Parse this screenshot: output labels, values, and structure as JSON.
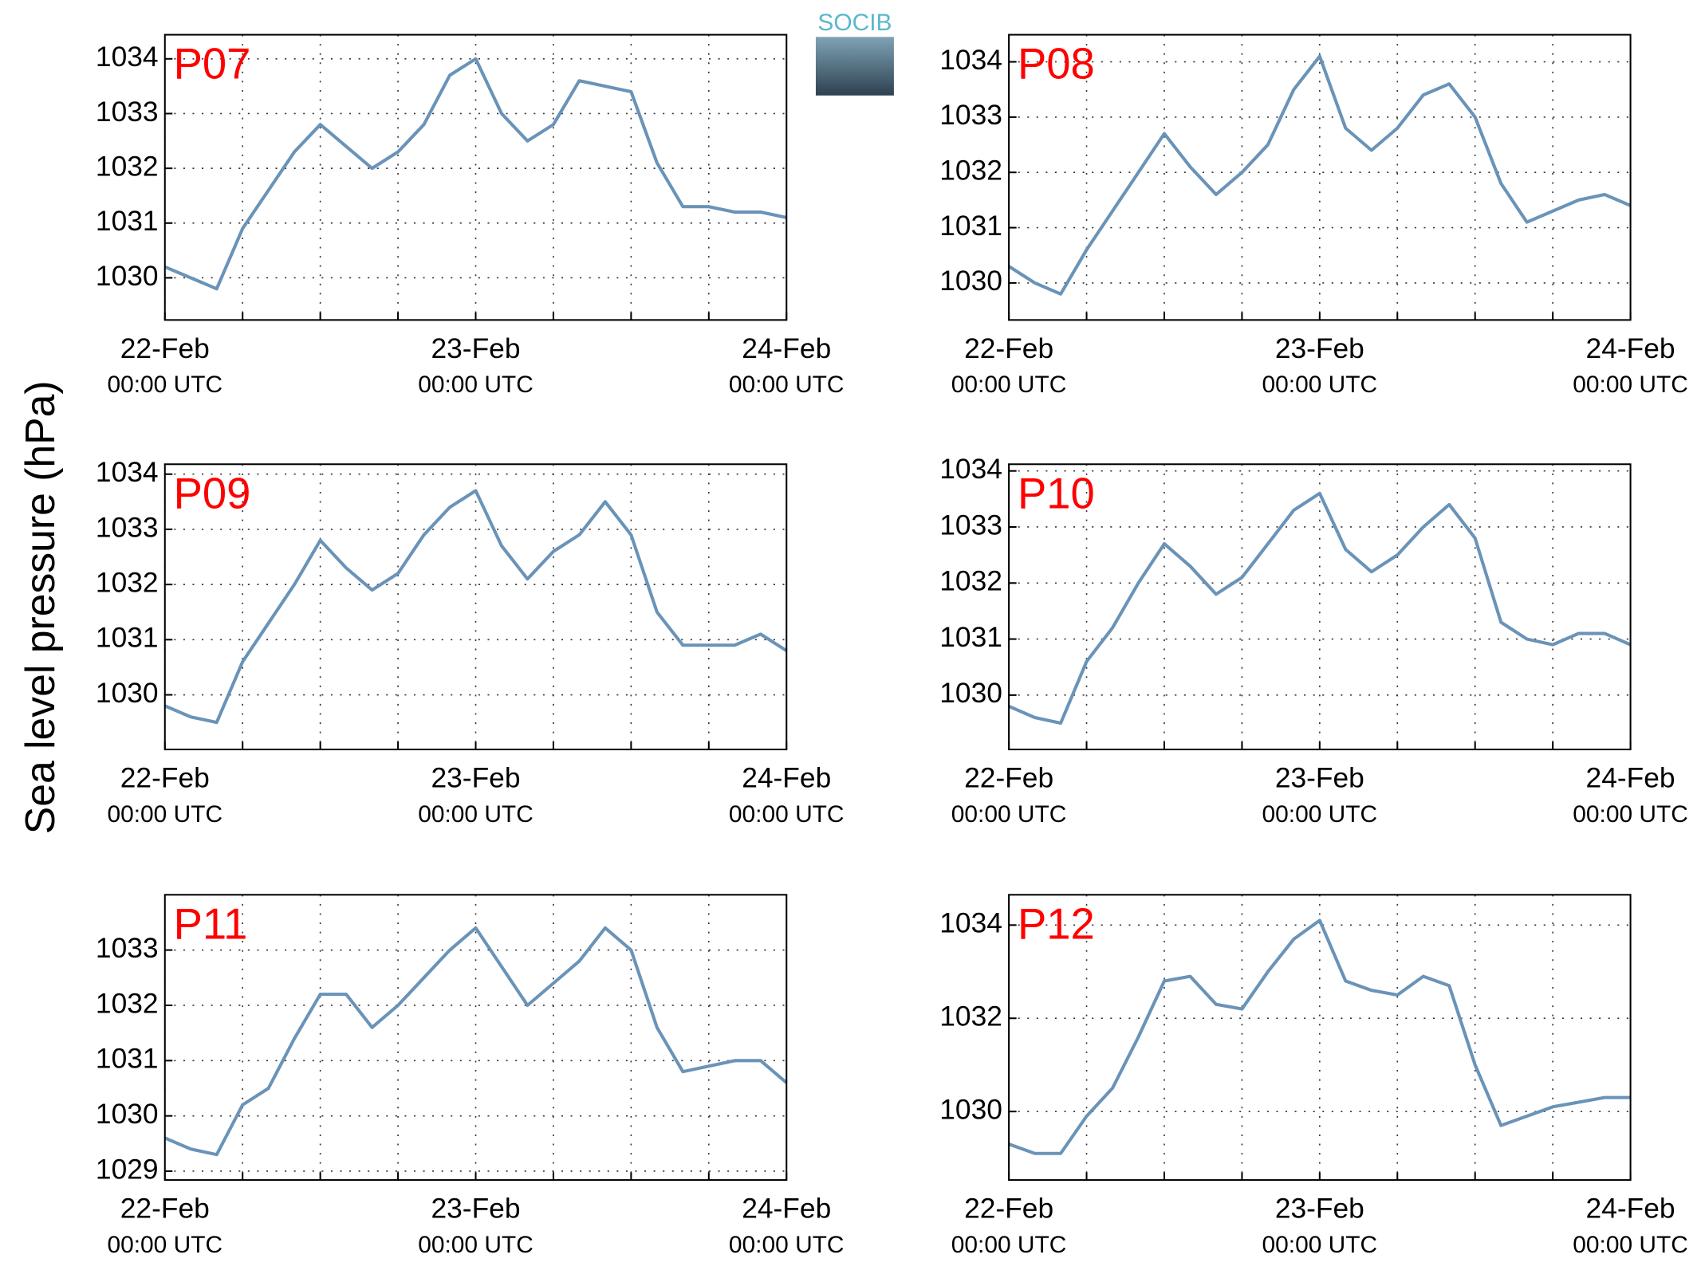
{
  "ylabel": "Sea level pressure (hPa)",
  "logo": "SOCIB",
  "chart_data": [
    {
      "type": "line",
      "title": "P07",
      "color": "#6a93b8",
      "x": [
        0,
        2,
        4,
        6,
        8,
        10,
        12,
        14,
        16,
        18,
        20,
        22,
        24,
        26,
        28,
        30,
        32,
        34,
        36,
        38,
        40,
        42,
        44,
        46,
        48
      ],
      "values": [
        1030.2,
        1030.0,
        1029.8,
        1030.9,
        1031.6,
        1032.3,
        1032.8,
        1032.4,
        1032.0,
        1032.3,
        1032.8,
        1033.7,
        1034.0,
        1033.0,
        1032.5,
        1032.8,
        1033.6,
        1033.5,
        1033.4,
        1032.1,
        1031.3,
        1031.3,
        1031.2,
        1031.2,
        1031.1
      ],
      "xlim": [
        0,
        48
      ],
      "xticks": [
        {
          "value": 0,
          "label": "22-Feb",
          "sublabel": "00:00 UTC"
        },
        {
          "value": 24,
          "label": "23-Feb",
          "sublabel": "00:00 UTC"
        },
        {
          "value": 48,
          "label": "24-Feb",
          "sublabel": "00:00 UTC"
        }
      ],
      "xminor": [
        6,
        12,
        18,
        30,
        36,
        42
      ],
      "ylim": [
        1029.23,
        1034.44
      ],
      "yticks": [
        1030,
        1031,
        1032,
        1033,
        1034
      ],
      "grid": true
    },
    {
      "type": "line",
      "title": "P08",
      "color": "#6a93b8",
      "x": [
        0,
        2,
        4,
        6,
        8,
        10,
        12,
        14,
        16,
        18,
        20,
        22,
        24,
        26,
        28,
        30,
        32,
        34,
        36,
        38,
        40,
        42,
        44,
        46,
        48
      ],
      "values": [
        1030.3,
        1030.0,
        1029.8,
        1030.6,
        1031.3,
        1032.0,
        1032.7,
        1032.1,
        1031.6,
        1032.0,
        1032.5,
        1033.5,
        1034.1,
        1032.8,
        1032.4,
        1032.8,
        1033.4,
        1033.6,
        1033.0,
        1031.8,
        1031.1,
        1031.3,
        1031.5,
        1031.6,
        1031.4
      ],
      "xlim": [
        0,
        48
      ],
      "xticks": [
        {
          "value": 0,
          "label": "22-Feb",
          "sublabel": "00:00 UTC"
        },
        {
          "value": 24,
          "label": "23-Feb",
          "sublabel": "00:00 UTC"
        },
        {
          "value": 48,
          "label": "24-Feb",
          "sublabel": "00:00 UTC"
        }
      ],
      "xminor": [
        6,
        12,
        18,
        30,
        36,
        42
      ],
      "ylim": [
        1029.33,
        1034.49
      ],
      "yticks": [
        1030,
        1031,
        1032,
        1033,
        1034
      ],
      "grid": true
    },
    {
      "type": "line",
      "title": "P09",
      "color": "#6a93b8",
      "x": [
        0,
        2,
        4,
        6,
        8,
        10,
        12,
        14,
        16,
        18,
        20,
        22,
        24,
        26,
        28,
        30,
        32,
        34,
        36,
        38,
        40,
        42,
        44,
        46,
        48
      ],
      "values": [
        1029.8,
        1029.6,
        1029.5,
        1030.6,
        1031.3,
        1032.0,
        1032.8,
        1032.3,
        1031.9,
        1032.2,
        1032.9,
        1033.4,
        1033.7,
        1032.7,
        1032.1,
        1032.6,
        1032.9,
        1033.5,
        1032.9,
        1031.5,
        1030.9,
        1030.9,
        1030.9,
        1031.1,
        1030.8
      ],
      "xlim": [
        0,
        48
      ],
      "xticks": [
        {
          "value": 0,
          "label": "22-Feb",
          "sublabel": "00:00 UTC"
        },
        {
          "value": 24,
          "label": "23-Feb",
          "sublabel": "00:00 UTC"
        },
        {
          "value": 48,
          "label": "24-Feb",
          "sublabel": "00:00 UTC"
        }
      ],
      "xminor": [
        6,
        12,
        18,
        30,
        36,
        42
      ],
      "ylim": [
        1029.01,
        1034.18
      ],
      "yticks": [
        1030,
        1031,
        1032,
        1033,
        1034
      ],
      "grid": true
    },
    {
      "type": "line",
      "title": "P10",
      "color": "#6a93b8",
      "x": [
        0,
        2,
        4,
        6,
        8,
        10,
        12,
        14,
        16,
        18,
        20,
        22,
        24,
        26,
        28,
        30,
        32,
        34,
        36,
        38,
        40,
        42,
        44,
        46,
        48
      ],
      "values": [
        1029.8,
        1029.6,
        1029.5,
        1030.6,
        1031.2,
        1032.0,
        1032.7,
        1032.3,
        1031.8,
        1032.1,
        1032.7,
        1033.3,
        1033.6,
        1032.6,
        1032.2,
        1032.5,
        1033.0,
        1033.4,
        1032.8,
        1031.3,
        1031.0,
        1030.9,
        1031.1,
        1031.1,
        1030.9
      ],
      "xlim": [
        0,
        48
      ],
      "xticks": [
        {
          "value": 0,
          "label": "22-Feb",
          "sublabel": "00:00 UTC"
        },
        {
          "value": 24,
          "label": "23-Feb",
          "sublabel": "00:00 UTC"
        },
        {
          "value": 48,
          "label": "24-Feb",
          "sublabel": "00:00 UTC"
        }
      ],
      "xminor": [
        6,
        12,
        18,
        30,
        36,
        42
      ],
      "ylim": [
        1029.03,
        1034.12
      ],
      "yticks": [
        1030,
        1031,
        1032,
        1033,
        1034
      ],
      "grid": true
    },
    {
      "type": "line",
      "title": "P11",
      "color": "#6a93b8",
      "x": [
        0,
        2,
        4,
        6,
        8,
        10,
        12,
        14,
        16,
        18,
        20,
        22,
        24,
        26,
        28,
        30,
        32,
        34,
        36,
        38,
        40,
        42,
        44,
        46,
        48
      ],
      "values": [
        1029.6,
        1029.4,
        1029.3,
        1030.2,
        1030.5,
        1031.4,
        1032.2,
        1032.2,
        1031.6,
        1032.0,
        1032.5,
        1033.0,
        1033.4,
        1032.7,
        1032.0,
        1032.4,
        1032.8,
        1033.4,
        1033.0,
        1031.6,
        1030.8,
        1030.9,
        1031.0,
        1031.0,
        1030.6
      ],
      "xlim": [
        0,
        48
      ],
      "xticks": [
        {
          "value": 0,
          "label": "22-Feb",
          "sublabel": "00:00 UTC"
        },
        {
          "value": 24,
          "label": "23-Feb",
          "sublabel": "00:00 UTC"
        },
        {
          "value": 48,
          "label": "24-Feb",
          "sublabel": "00:00 UTC"
        }
      ],
      "xminor": [
        6,
        12,
        18,
        30,
        36,
        42
      ],
      "ylim": [
        1028.84,
        1034.0
      ],
      "yticks": [
        1029,
        1030,
        1031,
        1032,
        1033
      ],
      "grid": true
    },
    {
      "type": "line",
      "title": "P12",
      "color": "#6a93b8",
      "x": [
        0,
        2,
        4,
        6,
        8,
        10,
        12,
        14,
        16,
        18,
        20,
        22,
        24,
        26,
        28,
        30,
        32,
        34,
        36,
        38,
        40,
        42,
        44,
        46,
        48
      ],
      "values": [
        1029.3,
        1029.1,
        1029.1,
        1029.9,
        1030.5,
        1031.6,
        1032.8,
        1032.9,
        1032.3,
        1032.2,
        1033.0,
        1033.7,
        1034.1,
        1032.8,
        1032.6,
        1032.5,
        1032.9,
        1032.7,
        1031.0,
        1029.7,
        1029.9,
        1030.1,
        1030.2,
        1030.3,
        1030.3
      ],
      "xlim": [
        0,
        48
      ],
      "xticks": [
        {
          "value": 0,
          "label": "22-Feb",
          "sublabel": "00:00 UTC"
        },
        {
          "value": 24,
          "label": "23-Feb",
          "sublabel": "00:00 UTC"
        },
        {
          "value": 48,
          "label": "24-Feb",
          "sublabel": "00:00 UTC"
        }
      ],
      "xminor": [
        6,
        12,
        18,
        30,
        36,
        42
      ],
      "ylim": [
        1028.53,
        1034.65
      ],
      "yticks": [
        1030,
        1032,
        1034
      ],
      "grid": true
    }
  ]
}
